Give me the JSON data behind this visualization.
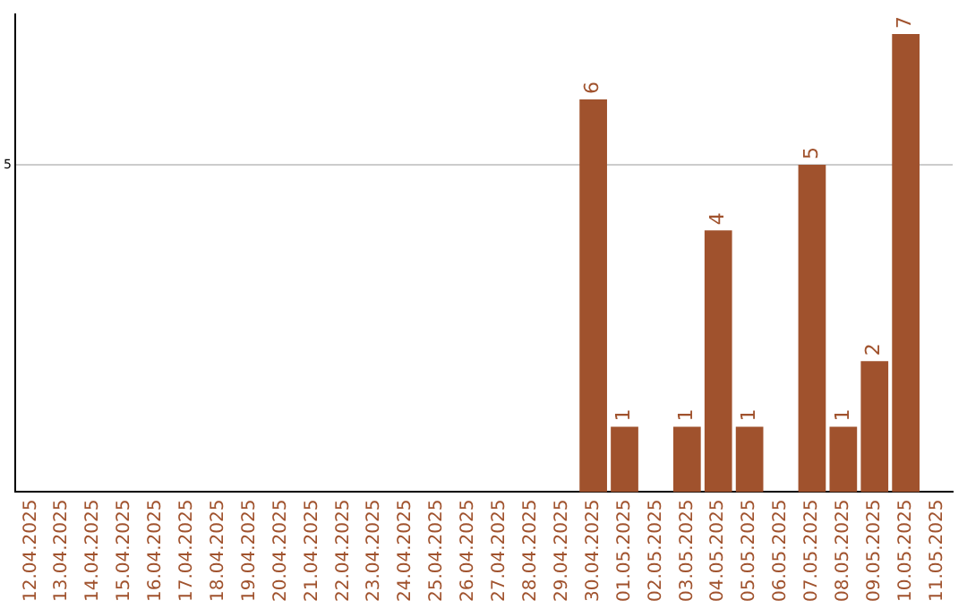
{
  "chart_data": {
    "type": "bar",
    "categories": [
      "12.04.2025",
      "13.04.2025",
      "14.04.2025",
      "15.04.2025",
      "16.04.2025",
      "17.04.2025",
      "18.04.2025",
      "19.04.2025",
      "20.04.2025",
      "21.04.2025",
      "22.04.2025",
      "23.04.2025",
      "24.04.2025",
      "25.04.2025",
      "26.04.2025",
      "27.04.2025",
      "28.04.2025",
      "29.04.2025",
      "30.04.2025",
      "01.05.2025",
      "02.05.2025",
      "03.05.2025",
      "04.05.2025",
      "05.05.2025",
      "06.05.2025",
      "07.05.2025",
      "08.05.2025",
      "09.05.2025",
      "10.05.2025",
      "11.05.2025"
    ],
    "values": [
      null,
      null,
      null,
      null,
      null,
      null,
      null,
      null,
      null,
      null,
      null,
      null,
      null,
      null,
      null,
      null,
      null,
      null,
      6,
      1,
      null,
      1,
      4,
      1,
      null,
      5,
      1,
      2,
      7,
      null
    ],
    "color": "#a0522d",
    "ylim": [
      0,
      7.3
    ],
    "yticks": [
      5
    ],
    "grid": "y",
    "data_labels": true
  }
}
